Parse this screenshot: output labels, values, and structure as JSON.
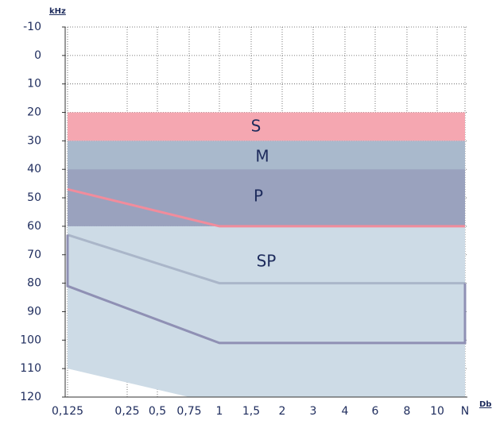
{
  "chart_data": {
    "type": "region",
    "y_unit": "kHz",
    "x_unit": "Db",
    "categories": [
      "0,125",
      "0,25",
      "0,5",
      "0,75",
      "1",
      "1,5",
      "2",
      "3",
      "4",
      "6",
      "8",
      "10",
      "N"
    ],
    "ylim": [
      -10,
      120
    ],
    "yticks": [
      -10,
      0,
      10,
      20,
      30,
      40,
      50,
      60,
      70,
      80,
      90,
      100,
      110,
      120
    ],
    "grid": true,
    "regions": [
      {
        "name": "S",
        "color": "#f5a7b1",
        "x": [
          "0,125",
          "N",
          "N",
          "0,125"
        ],
        "values": [
          20,
          20,
          30,
          30
        ]
      },
      {
        "name": "M",
        "color": "#a9b9cc",
        "x": [
          "0,125",
          "N",
          "N",
          "0,125"
        ],
        "values": [
          30,
          30,
          60,
          60
        ]
      },
      {
        "name": "SP",
        "color": "#cddbe6",
        "x": [
          "0,125",
          "N",
          "N",
          "0,75",
          "0,125"
        ],
        "values": [
          60,
          60,
          120,
          120,
          110
        ]
      },
      {
        "name": "P",
        "color": "#9aa2be",
        "x": [
          "0,125",
          "N",
          "N",
          "0,125"
        ],
        "values": [
          40,
          40,
          60,
          60
        ]
      }
    ],
    "lines": [
      {
        "color": "#f18c9c",
        "x": [
          "0,125",
          "1",
          "N"
        ],
        "values": [
          47,
          60,
          60
        ]
      },
      {
        "color": "#aab6c9",
        "x": [
          "0,125",
          "1",
          "N"
        ],
        "values": [
          63,
          80,
          80
        ]
      },
      {
        "color": "#8f90b4",
        "x": [
          "0,125",
          "0,125",
          "1",
          "N",
          "N"
        ],
        "values": [
          63,
          81,
          101,
          101,
          80
        ]
      }
    ]
  }
}
